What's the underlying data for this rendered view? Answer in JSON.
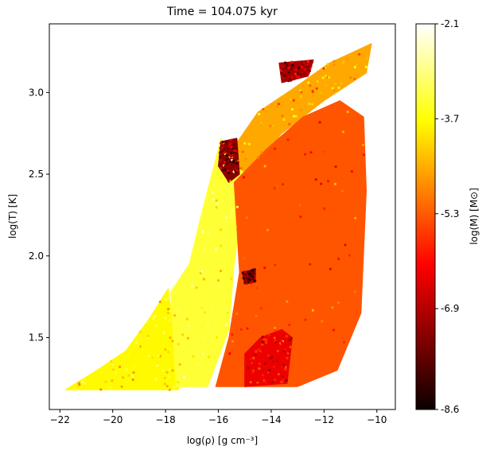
{
  "chart_data": {
    "type": "scatter",
    "title": "Time = 104.075 kyr",
    "xlabel": "log(ρ) [g cm⁻³]",
    "ylabel": "log(T) [K]",
    "xlim": [
      -22.4,
      -9.3
    ],
    "ylim": [
      1.06,
      3.42
    ],
    "xticks": [
      -22,
      -20,
      -18,
      -16,
      -14,
      -12,
      -10
    ],
    "yticks": [
      1.5,
      2.0,
      2.5,
      3.0
    ],
    "grid": false,
    "colorbar": {
      "label": "log(M) [M⊙]",
      "colormap": "hot",
      "range": [
        -8.6,
        -2.1
      ],
      "ticks": [
        -2.1,
        -3.7,
        -5.3,
        -6.9,
        -8.6
      ]
    },
    "regions": [
      {
        "name": "low-density diagonal arm, bright",
        "color_value": -3.8,
        "points": [
          [
            -21.8,
            1.18
          ],
          [
            -19.8,
            1.18
          ],
          [
            -17.5,
            1.18
          ],
          [
            -17.6,
            1.45
          ],
          [
            -17.9,
            1.8
          ],
          [
            -18.6,
            1.62
          ],
          [
            -19.5,
            1.42
          ],
          [
            -20.6,
            1.3
          ],
          [
            -21.6,
            1.2
          ]
        ]
      },
      {
        "name": "mid plume",
        "color_value": -3.4,
        "points": [
          [
            -17.6,
            1.2
          ],
          [
            -16.4,
            1.2
          ],
          [
            -15.6,
            1.55
          ],
          [
            -15.4,
            1.95
          ],
          [
            -15.1,
            2.3
          ],
          [
            -15.0,
            2.55
          ],
          [
            -15.9,
            2.72
          ],
          [
            -16.6,
            2.28
          ],
          [
            -17.1,
            1.95
          ],
          [
            -17.8,
            1.78
          ]
        ]
      },
      {
        "name": "upper ridge",
        "color_value": -4.6,
        "points": [
          [
            -15.7,
            2.6
          ],
          [
            -14.5,
            2.88
          ],
          [
            -13.2,
            3.02
          ],
          [
            -11.8,
            3.18
          ],
          [
            -10.2,
            3.3
          ],
          [
            -10.4,
            3.12
          ],
          [
            -12.0,
            2.95
          ],
          [
            -13.6,
            2.75
          ],
          [
            -14.9,
            2.5
          ]
        ]
      },
      {
        "name": "main body",
        "color_value": -5.4,
        "points": [
          [
            -16.1,
            1.2
          ],
          [
            -13.0,
            1.2
          ],
          [
            -11.5,
            1.3
          ],
          [
            -10.6,
            1.65
          ],
          [
            -10.4,
            2.4
          ],
          [
            -10.5,
            2.85
          ],
          [
            -11.4,
            2.95
          ],
          [
            -12.8,
            2.85
          ],
          [
            -14.2,
            2.65
          ],
          [
            -15.4,
            2.45
          ],
          [
            -15.2,
            1.9
          ],
          [
            -15.6,
            1.5
          ]
        ]
      },
      {
        "name": "dense streaks",
        "color_value": -6.4,
        "points": [
          [
            -15.0,
            1.2
          ],
          [
            -13.4,
            1.22
          ],
          [
            -13.2,
            1.5
          ],
          [
            -13.6,
            1.55
          ],
          [
            -14.4,
            1.5
          ],
          [
            -15.0,
            1.4
          ]
        ]
      },
      {
        "name": "dark knot upper",
        "color_value": -7.3,
        "points": [
          [
            -15.9,
            2.7
          ],
          [
            -15.3,
            2.72
          ],
          [
            -15.2,
            2.5
          ],
          [
            -15.6,
            2.45
          ],
          [
            -16.0,
            2.55
          ]
        ]
      },
      {
        "name": "dark knot mid",
        "color_value": -7.6,
        "points": [
          [
            -15.1,
            1.9
          ],
          [
            -14.6,
            1.92
          ],
          [
            -14.6,
            1.84
          ],
          [
            -15.0,
            1.83
          ]
        ]
      },
      {
        "name": "dark top cap",
        "color_value": -7.0,
        "points": [
          [
            -13.7,
            3.18
          ],
          [
            -12.4,
            3.2
          ],
          [
            -12.6,
            3.1
          ],
          [
            -13.6,
            3.06
          ]
        ]
      }
    ]
  }
}
